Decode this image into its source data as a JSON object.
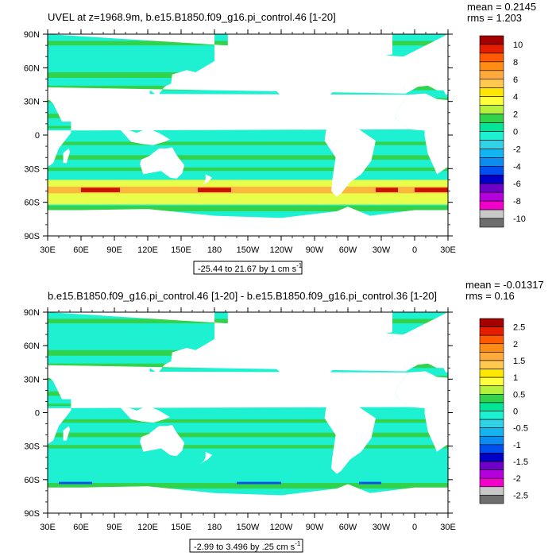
{
  "chart_data": [
    {
      "type": "heatmap",
      "title": "UVEL at z=1968.9m, b.e15.B1850.f09_g16.pi_control.46 [1-20]",
      "stats": {
        "mean": "mean = 0.2145",
        "rms": "rms = 1.203"
      },
      "range_label": "-25.44 to 21.67 by 1 cm s",
      "range_sup": "-1",
      "x_ticks": [
        "30E",
        "60E",
        "90E",
        "120E",
        "150E",
        "180",
        "150W",
        "120W",
        "90W",
        "60W",
        "30W",
        "0",
        "30E"
      ],
      "y_ticks": [
        "90N",
        "60N",
        "30N",
        "0",
        "30S",
        "60S",
        "90S"
      ],
      "colorbar_labels": [
        "10",
        "8",
        "6",
        "4",
        "2",
        "0",
        "-2",
        "-4",
        "-6",
        "-8",
        "-10"
      ],
      "colorbar_colors": [
        "#a50000",
        "#e61e00",
        "#ff5a00",
        "#ff8c14",
        "#ffaa3c",
        "#ffc850",
        "#ffe600",
        "#ffff3c",
        "#b4f03c",
        "#32d24b",
        "#00e696",
        "#1ef0d2",
        "#32d2e6",
        "#14b4f0",
        "#0a8cf0",
        "#0050f0",
        "#0000c8",
        "#6e00c8",
        "#b400dc",
        "#f000c8",
        "#c8c8c8",
        "#6e6e6e"
      ],
      "xlim": [
        30,
        390
      ],
      "ylim": [
        -90,
        90
      ]
    },
    {
      "type": "heatmap",
      "title": "b.e15.B1850.f09_g16.pi_control.46 [1-20] - b.e15.B1850.f09_g16.pi_control.36 [1-20]",
      "stats": {
        "mean": "mean = -0.01317",
        "rms": "rms = 0.16"
      },
      "range_label": "-2.99 to 3.496 by .25 cm s",
      "range_sup": "-1",
      "x_ticks": [
        "30E",
        "60E",
        "90E",
        "120E",
        "150E",
        "180",
        "150W",
        "120W",
        "90W",
        "60W",
        "30W",
        "0",
        "30E"
      ],
      "y_ticks": [
        "90N",
        "60N",
        "30N",
        "0",
        "30S",
        "60S",
        "90S"
      ],
      "colorbar_labels": [
        "2.5",
        "2",
        "1.5",
        "1",
        "0.5",
        "0",
        "-0.5",
        "-1",
        "-1.5",
        "-2",
        "-2.5"
      ],
      "colorbar_colors": [
        "#a50000",
        "#e61e00",
        "#ff5a00",
        "#ff8c14",
        "#ffaa3c",
        "#ffc850",
        "#ffe600",
        "#ffff3c",
        "#b4f03c",
        "#32d24b",
        "#00e696",
        "#1ef0d2",
        "#32d2e6",
        "#14b4f0",
        "#0a8cf0",
        "#0050f0",
        "#0000c8",
        "#6e00c8",
        "#b400dc",
        "#f000c8",
        "#c8c8c8",
        "#6e6e6e"
      ],
      "xlim": [
        30,
        390
      ],
      "ylim": [
        -90,
        90
      ]
    }
  ],
  "colors": {
    "ocean_top": "#1ef0d2",
    "ocean_band_top": "#32d24b",
    "ocean_bottom": "#1ef0d2",
    "ocean_band_bottom": "#32d24b",
    "acc_yellow": "#ffff3c",
    "acc_orange": "#ffaa3c",
    "acc_red": "#c81400",
    "acc_blue": "#0050f0",
    "land": "#ffffff"
  }
}
